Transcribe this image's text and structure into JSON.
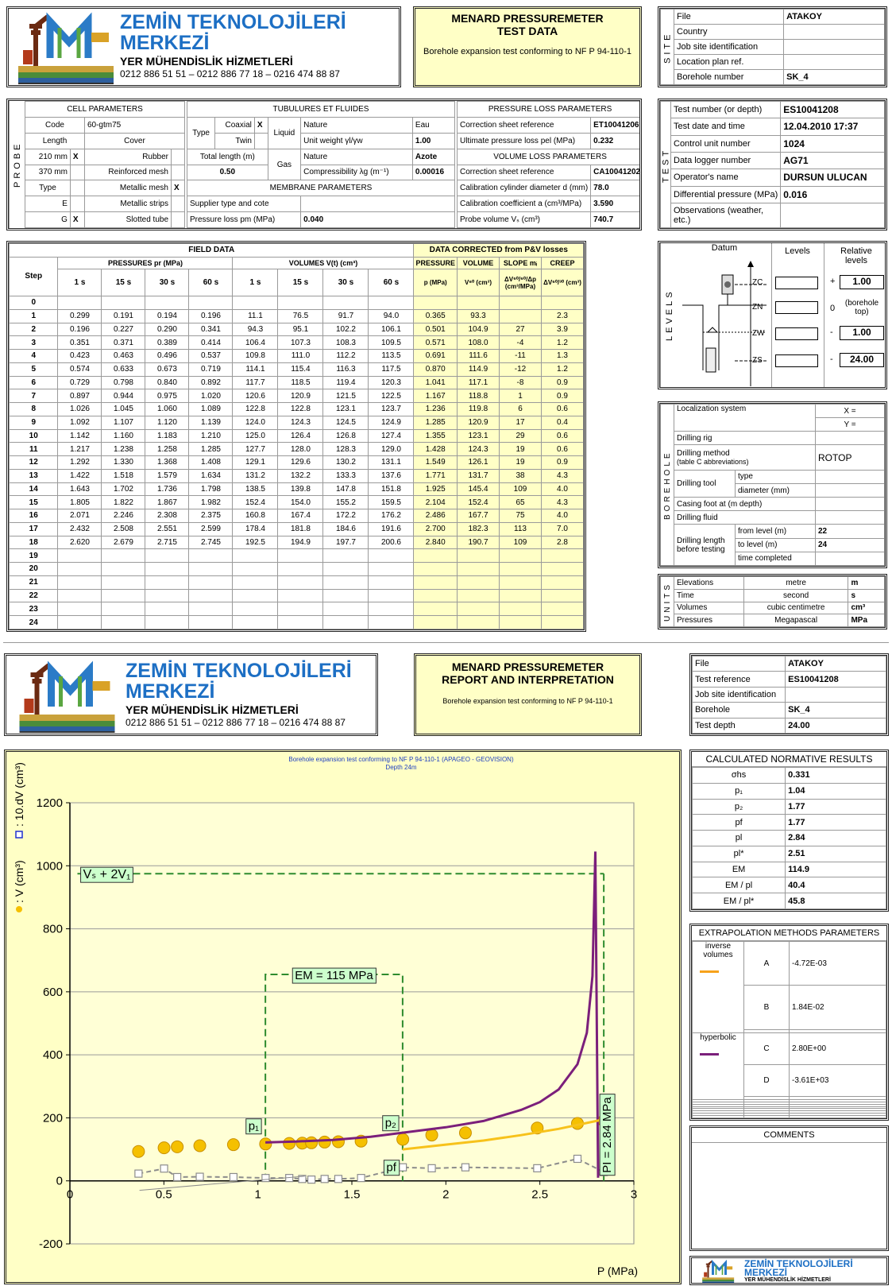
{
  "header": {
    "company": [
      "ZEMİN TEKNOLOJİLERİ",
      "MERKEZİ",
      "YER MÜHENDİSLİK HİZMETLERİ",
      "0212 886 51 51 – 0212 886 77 18 – 0216 474 88 87"
    ],
    "title": [
      "MENARD PRESSUREMETER",
      "TEST DATA"
    ],
    "subtitle": "Borehole expansion test conforming to NF P 94-110-1"
  },
  "site": {
    "label": "SITE",
    "rows": [
      [
        "File",
        "ATAKOY"
      ],
      [
        "Country"
      ],
      [
        "Job site identification"
      ],
      [
        "Location plan ref."
      ],
      [
        "Borehole number",
        "SK_4"
      ]
    ]
  },
  "probe": {
    "label": "PROBE",
    "cell": {
      "title": "CELL PARAMETERS",
      "code": [
        "Code",
        "60-gtm75"
      ],
      "head": [
        "Length",
        "Cover"
      ],
      "rows": [
        [
          "210 mm",
          "X",
          "Rubber"
        ],
        [
          "370 mm",
          "Reinforced mesh"
        ],
        [
          "Type",
          "Metallic mesh",
          "X"
        ],
        [
          "E",
          "Metallic strips"
        ],
        [
          "G",
          "X",
          "Slotted tube"
        ]
      ]
    },
    "tubes": {
      "title": "TUBULURES ET FLUIDES",
      "type": "Type",
      "coaxial": [
        "Coaxial",
        "X"
      ],
      "twin": "Twin",
      "liquid": "Liquid",
      "liquid_rows": [
        [
          "Nature",
          "Eau"
        ],
        [
          "Unit weight γl/γw",
          "1.00"
        ]
      ],
      "total_length": [
        "Total length (m)",
        "0.50"
      ],
      "gas": "Gas",
      "gas_rows": [
        [
          "Nature",
          "Azote"
        ],
        [
          "Compressibility λg (m⁻¹)",
          "0.00016"
        ]
      ]
    },
    "membrane": {
      "title": "MEMBRANE PARAMETERS",
      "rows": [
        [
          "Supplier type and cote"
        ],
        [
          "Pressure loss pm (MPa)",
          "0.040"
        ]
      ]
    },
    "pressure_loss": {
      "title": "PRESSURE LOSS PARAMETERS",
      "rows": [
        [
          "Correction sheet reference",
          "ET10041206"
        ],
        [
          "Ultimate pressure loss pel (MPa)",
          "0.232"
        ]
      ]
    },
    "volume_loss": {
      "title": "VOLUME LOSS PARAMETERS",
      "rows": [
        [
          "Correction sheet reference",
          "CA10041202"
        ],
        [
          "Calibration cylinder diameter d (mm)",
          "78.0"
        ],
        [
          "Calibration coefficient a (cm³/MPa)",
          "3.590"
        ],
        [
          "Probe volume Vₛ (cm³)",
          "740.7"
        ]
      ]
    }
  },
  "test": {
    "label": "TEST",
    "rows": [
      [
        "Test number (or depth)",
        "ES10041208"
      ],
      [
        "Test date and time",
        "12.04.2010 17:37"
      ],
      [
        "Control unit number",
        "1024"
      ],
      [
        "Data logger number",
        "AG71"
      ],
      [
        "Operator's name",
        "DURSUN ULUCAN"
      ],
      [
        "Differential pressure (MPa)",
        "0.016"
      ],
      [
        "Observations (weather, etc.)"
      ]
    ]
  },
  "field_data": {
    "title": "FIELD DATA",
    "corrected_title": "DATA CORRECTED from P&V losses",
    "step": "Step",
    "pressures_title": "PRESSURES pr (MPa)",
    "volumes_title": "VOLUMES V(t) (cm³)",
    "times": [
      "1 s",
      "15 s",
      "30 s",
      "60 s"
    ],
    "corrected_heads": [
      [
        "PRESSURE",
        "p (MPa)"
      ],
      [
        "VOLUME",
        "V⁶⁰ (cm³)"
      ],
      [
        "SLOPE mᵢ",
        "ΔV⁶⁰/⁶⁰/Δp (cm³/MPa)"
      ],
      [
        "CREEP",
        "ΔV⁶⁰/³⁰ (cm³)"
      ]
    ],
    "rows": [
      [
        "0"
      ],
      [
        "1",
        "0.299",
        "0.191",
        "0.194",
        "0.196",
        "11.1",
        "76.5",
        "91.7",
        "94.0",
        "0.365",
        "93.3",
        null,
        "2.3"
      ],
      [
        "2",
        "0.196",
        "0.227",
        "0.290",
        "0.341",
        "94.3",
        "95.1",
        "102.2",
        "106.1",
        "0.501",
        "104.9",
        "27",
        "3.9"
      ],
      [
        "3",
        "0.351",
        "0.371",
        "0.389",
        "0.414",
        "106.4",
        "107.3",
        "108.3",
        "109.5",
        "0.571",
        "108.0",
        "-4",
        "1.2"
      ],
      [
        "4",
        "0.423",
        "0.463",
        "0.496",
        "0.537",
        "109.8",
        "111.0",
        "112.2",
        "113.5",
        "0.691",
        "111.6",
        "-11",
        "1.3"
      ],
      [
        "5",
        "0.574",
        "0.633",
        "0.673",
        "0.719",
        "114.1",
        "115.4",
        "116.3",
        "117.5",
        "0.870",
        "114.9",
        "-12",
        "1.2"
      ],
      [
        "6",
        "0.729",
        "0.798",
        "0.840",
        "0.892",
        "117.7",
        "118.5",
        "119.4",
        "120.3",
        "1.041",
        "117.1",
        "-8",
        "0.9"
      ],
      [
        "7",
        "0.897",
        "0.944",
        "0.975",
        "1.020",
        "120.6",
        "120.9",
        "121.5",
        "122.5",
        "1.167",
        "118.8",
        "1",
        "0.9"
      ],
      [
        "8",
        "1.026",
        "1.045",
        "1.060",
        "1.089",
        "122.8",
        "122.8",
        "123.1",
        "123.7",
        "1.236",
        "119.8",
        "6",
        "0.6"
      ],
      [
        "9",
        "1.092",
        "1.107",
        "1.120",
        "1.139",
        "124.0",
        "124.3",
        "124.5",
        "124.9",
        "1.285",
        "120.9",
        "17",
        "0.4"
      ],
      [
        "10",
        "1.142",
        "1.160",
        "1.183",
        "1.210",
        "125.0",
        "126.4",
        "126.8",
        "127.4",
        "1.355",
        "123.1",
        "29",
        "0.6"
      ],
      [
        "11",
        "1.217",
        "1.238",
        "1.258",
        "1.285",
        "127.7",
        "128.0",
        "128.3",
        "129.0",
        "1.428",
        "124.3",
        "19",
        "0.6"
      ],
      [
        "12",
        "1.292",
        "1.330",
        "1.368",
        "1.408",
        "129.1",
        "129.6",
        "130.2",
        "131.1",
        "1.549",
        "126.1",
        "19",
        "0.9"
      ],
      [
        "13",
        "1.422",
        "1.518",
        "1.579",
        "1.634",
        "131.2",
        "132.2",
        "133.3",
        "137.6",
        "1.771",
        "131.7",
        "38",
        "4.3"
      ],
      [
        "14",
        "1.643",
        "1.702",
        "1.736",
        "1.798",
        "138.5",
        "139.8",
        "147.8",
        "151.8",
        "1.925",
        "145.4",
        "109",
        "4.0"
      ],
      [
        "15",
        "1.805",
        "1.822",
        "1.867",
        "1.982",
        "152.4",
        "154.0",
        "155.2",
        "159.5",
        "2.104",
        "152.4",
        "65",
        "4.3"
      ],
      [
        "16",
        "2.071",
        "2.246",
        "2.308",
        "2.375",
        "160.8",
        "167.4",
        "172.2",
        "176.2",
        "2.486",
        "167.7",
        "75",
        "4.0"
      ],
      [
        "17",
        "2.432",
        "2.508",
        "2.551",
        "2.599",
        "178.4",
        "181.8",
        "184.6",
        "191.6",
        "2.700",
        "182.3",
        "113",
        "7.0"
      ],
      [
        "18",
        "2.620",
        "2.679",
        "2.715",
        "2.745",
        "192.5",
        "194.9",
        "197.7",
        "200.6",
        "2.840",
        "190.7",
        "109",
        "2.8"
      ],
      [
        "19"
      ],
      [
        "20"
      ],
      [
        "21"
      ],
      [
        "22"
      ],
      [
        "23"
      ],
      [
        "24"
      ]
    ]
  },
  "levels": {
    "label": "LEVELS",
    "heads": [
      "Datum",
      "Levels",
      "Relative levels"
    ],
    "z": [
      "ZC",
      "ZN",
      "ZW",
      "ZS"
    ],
    "rows": [
      [
        "+",
        "1.00"
      ],
      [
        "0",
        "(borehole top)"
      ],
      [
        "-",
        "1.00"
      ],
      [
        "-",
        "24.00"
      ]
    ]
  },
  "borehole": {
    "label": "BOREHOLE",
    "localization": [
      "Localization system",
      "X =",
      "Y ="
    ],
    "rig": "Drilling rig",
    "method": [
      "Drilling method",
      "(table C abbreviations)",
      "ROTOP"
    ],
    "tool": [
      "Drilling tool",
      "type",
      "diameter (mm)"
    ],
    "casing": "Casing foot at (m depth)",
    "fluid": "Drilling fluid",
    "length": [
      "Drilling length before testing",
      [
        "from level (m)",
        "22"
      ],
      [
        "to level (m)",
        "24"
      ],
      [
        "time completed"
      ]
    ]
  },
  "units": {
    "label": "UNITS",
    "rows": [
      [
        "Elevations",
        "metre",
        "m"
      ],
      [
        "Time",
        "second",
        "s"
      ],
      [
        "Volumes",
        "cubic centimetre",
        "cm³"
      ],
      [
        "Pressures",
        "Megapascal",
        "MPa"
      ]
    ]
  },
  "report_header": {
    "title": [
      "MENARD PRESSUREMETER",
      "REPORT AND INTERPRETATION"
    ],
    "subtitle": "Borehole expansion test conforming to NF P 94-110-1"
  },
  "report_info": {
    "rows": [
      [
        "File",
        "ATAKOY"
      ],
      [
        "Test reference",
        "ES10041208"
      ],
      [
        "Job site identification"
      ],
      [
        "Borehole",
        "SK_4"
      ],
      [
        "Test depth",
        "24.00"
      ]
    ]
  },
  "results": {
    "title": "CALCULATED NORMATIVE RESULTS",
    "rows": [
      [
        "σhs",
        "0.331"
      ],
      [
        "p₁",
        "1.04"
      ],
      [
        "p₂",
        "1.77"
      ],
      [
        "pf",
        "1.77"
      ],
      [
        "pl",
        "2.84"
      ],
      [
        "pl*",
        "2.51"
      ],
      [
        "EM",
        "114.9"
      ],
      [
        "EM / pl",
        "40.4"
      ],
      [
        "EM / pl*",
        "45.8"
      ]
    ]
  },
  "extrapolation": {
    "title": "EXTRAPOLATION METHODS PARAMETERS",
    "methods": [
      {
        "name": "inverse volumes",
        "color": "#f7a21b",
        "params": [
          [
            "A",
            "-4.72E-03"
          ],
          [
            "B",
            "1.84E-02"
          ]
        ]
      },
      {
        "name": "hyperbolic",
        "color": "#7b1f7b",
        "params": [
          [
            "C",
            "2.80E+00"
          ],
          [
            "D",
            "-3.61E+03"
          ]
        ]
      }
    ]
  },
  "comments": {
    "title": "COMMENTS"
  },
  "chart_data": {
    "type": "line",
    "title": "Borehole expansion test conforming to NF P 94-110-1 (APAGEO - GEOVISION)",
    "subtitle": "Depth  24m",
    "x_label": "P (MPa)",
    "y_label": ": V (cm³)",
    "y_label_2": ": 10.dV (cm³)",
    "xlim": [
      0,
      3
    ],
    "xticks": [
      0,
      0.5,
      1,
      1.5,
      2,
      2.5,
      3
    ],
    "ylim": [
      -200,
      1200
    ],
    "yticks": [
      -200,
      0,
      200,
      400,
      600,
      800,
      1000,
      1200
    ],
    "grid": true,
    "series": [
      {
        "style": "markers",
        "color": "#f5c000",
        "x": [
          0.365,
          0.501,
          0.571,
          0.691,
          0.87,
          1.041,
          1.167,
          1.236,
          1.285,
          1.355,
          1.428,
          1.549,
          1.771,
          1.925,
          2.104,
          2.486,
          2.7,
          2.84
        ],
        "values": [
          93.3,
          104.9,
          108.0,
          111.6,
          114.9,
          117.1,
          118.8,
          119.8,
          120.9,
          123.1,
          124.3,
          126.1,
          131.7,
          145.4,
          152.4,
          167.7,
          182.3,
          190.7
        ]
      },
      {
        "style": "dashed-squares",
        "color": "#8c8c8c",
        "x": [
          0.365,
          0.501,
          0.571,
          0.691,
          0.87,
          1.041,
          1.167,
          1.236,
          1.285,
          1.355,
          1.428,
          1.549,
          1.771,
          1.925,
          2.104,
          2.486,
          2.7,
          2.84
        ],
        "values": [
          23,
          39,
          12,
          13,
          12,
          9,
          9,
          6,
          4,
          6,
          6,
          9,
          43,
          40,
          43,
          40,
          70,
          28
        ]
      },
      {
        "style": "line",
        "color": "#7b1f7b",
        "x": [
          1.04,
          1.2,
          1.4,
          1.6,
          1.8,
          2.0,
          2.2,
          2.4,
          2.5,
          2.6,
          2.7,
          2.75,
          2.78,
          2.795,
          2.81
        ],
        "values": [
          122,
          125,
          130,
          140,
          155,
          170,
          190,
          225,
          250,
          290,
          370,
          470,
          650,
          1045,
          10
        ]
      },
      {
        "style": "line",
        "color": "#f7c21b",
        "x": [
          1.77,
          2.0,
          2.2,
          2.4,
          2.6,
          2.84
        ],
        "values": [
          100,
          115,
          128,
          145,
          165,
          195
        ]
      },
      {
        "style": "thin-line",
        "color": "#8c8c8c",
        "x": [
          0.37,
          1.25
        ],
        "values": [
          -30,
          15
        ]
      }
    ],
    "annotations": {
      "vs_2v1": {
        "label": "Vₛ + 2V₁",
        "value": 975
      },
      "em": {
        "label": "EM = 115 MPa",
        "x": [
          1.04,
          1.77
        ],
        "y": 655
      },
      "p1": {
        "label": "p₁",
        "x": 1.04
      },
      "p2": {
        "label": "p₂",
        "x": 1.77
      },
      "pf": {
        "label": "pf",
        "x": 1.77
      },
      "pl": {
        "label": "PI = 2.84 MPa",
        "x": 2.84
      }
    }
  }
}
